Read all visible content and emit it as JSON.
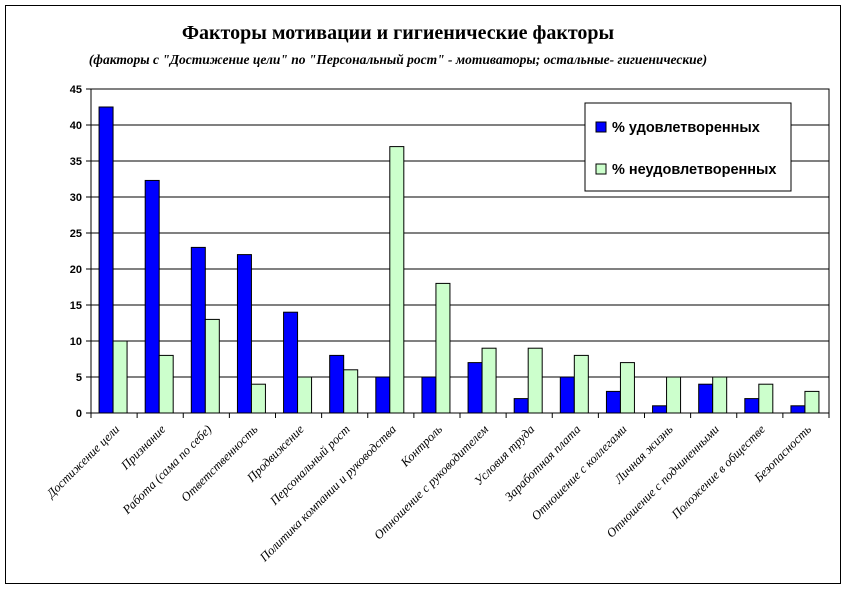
{
  "colors": {
    "series1": "#0000ff",
    "series2": "#ccffcc",
    "grid": "#000000",
    "background": "#ffffff"
  },
  "chart_data": {
    "type": "bar",
    "title": "Факторы мотивации и гигиенические  факторы",
    "subtitle": "(факторы с \"Достижение цели\" по \"Персональный рост\" - мотиваторы; остальные- гигиенические)",
    "xlabel": "",
    "ylabel": "",
    "ylim": [
      0,
      45
    ],
    "yticks": [
      0,
      5,
      10,
      15,
      20,
      25,
      30,
      35,
      40,
      45
    ],
    "grid": true,
    "legend_position": "top-right",
    "categories": [
      "Достижение цели",
      "Признание",
      "Работа (сама по себе)",
      "Ответственность",
      "Продвижение",
      "Персональный рост",
      "Политика компании и руководства",
      "Контроль",
      "Отношение с руководителем",
      "Условия труда",
      "Заработная плата",
      "Отношение с коллегами",
      "Личная жизнь",
      "Отношение с подчиненными",
      "Положение в обществе",
      "Безопасность"
    ],
    "series": [
      {
        "name": "% удовлетворенных",
        "color": "#0000ff",
        "values": [
          42.5,
          32.3,
          23,
          22,
          14,
          8,
          5,
          5,
          7,
          2,
          5,
          3,
          1,
          4,
          2,
          1
        ]
      },
      {
        "name": "% неудовлетворенных",
        "color": "#ccffcc",
        "values": [
          10,
          8,
          13,
          4,
          5,
          6,
          37,
          18,
          9,
          9,
          8,
          7,
          5,
          5,
          4,
          3
        ]
      }
    ]
  }
}
